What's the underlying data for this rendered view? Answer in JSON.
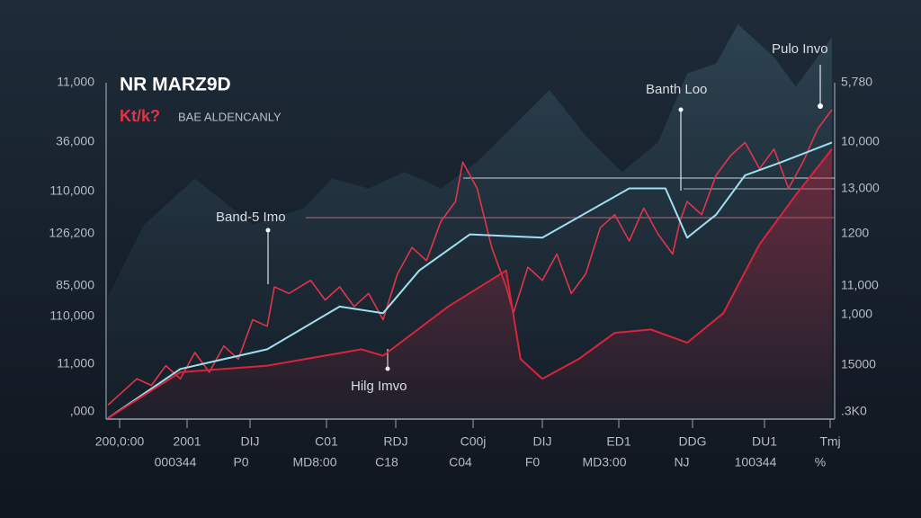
{
  "chart_data": {
    "type": "line",
    "title": "NR MARZ9D",
    "subtitle_mark": "Kt/k?",
    "subtitle": "BAE ALDENCANLY",
    "annotations": [
      "Pulo Invo",
      "Banth Loo",
      "Band-5 Imo",
      "Hilg Imvo"
    ],
    "left_axis_labels": [
      "11,000",
      "36,000",
      "110,000",
      "126,200",
      "85,000",
      "110,000",
      "11,000",
      ",000"
    ],
    "right_axis_labels": [
      "5,780",
      "10,000",
      "13,000",
      "1200",
      "11,000",
      "1,000",
      "15000",
      ".3K0"
    ],
    "bottom_labels": [
      "200,0:00",
      "2001",
      "DIJ",
      "C01",
      "RDJ",
      "C00j",
      "DIJ",
      "ED1",
      "DDG",
      "DU1",
      "Tmj"
    ],
    "bottom_sublabels": [
      "000344",
      "P0",
      "MD8:00",
      "C18",
      "C04",
      "F0",
      "MD3:00",
      "NJ",
      "100344",
      "%"
    ],
    "xlim": [
      0,
      100
    ],
    "ylim": [
      0,
      120
    ],
    "background": {
      "color": "#2b3d4c",
      "x": [
        0,
        5,
        12,
        20,
        27,
        31,
        36,
        41,
        46,
        51,
        56,
        61,
        66,
        71,
        76,
        80,
        84,
        87,
        92,
        95,
        100
      ],
      "values": [
        37,
        59,
        73,
        59,
        64,
        73,
        70,
        75,
        70,
        78,
        89,
        100,
        86,
        75,
        84,
        105,
        108,
        120,
        110,
        101,
        116
      ]
    },
    "series": [
      {
        "color": "#e0354a",
        "style": "jagged",
        "x": [
          0,
          2,
          4,
          6,
          8,
          10,
          12,
          14,
          16,
          18,
          20,
          22,
          23,
          25,
          28,
          30,
          32,
          34,
          36,
          38,
          40,
          42,
          44,
          46,
          48,
          49,
          51,
          53,
          55,
          56,
          58,
          60,
          62,
          64,
          66,
          68,
          70,
          72,
          74,
          76,
          78,
          79,
          80,
          82,
          84,
          86,
          88,
          90,
          92,
          94,
          96,
          98,
          100
        ],
        "values": [
          4,
          8,
          12,
          10,
          16,
          12,
          20,
          14,
          22,
          18,
          30,
          28,
          40,
          38,
          42,
          36,
          40,
          34,
          38,
          30,
          44,
          52,
          48,
          60,
          66,
          78,
          70,
          52,
          40,
          32,
          46,
          42,
          50,
          38,
          44,
          58,
          62,
          54,
          64,
          56,
          50,
          60,
          66,
          62,
          74,
          80,
          84,
          76,
          82,
          70,
          78,
          88,
          94
        ]
      },
      {
        "color": "#9fe0f0",
        "style": "smooth",
        "x": [
          0,
          10,
          22,
          32,
          38,
          43,
          50,
          60,
          72,
          77,
          80,
          84,
          88,
          93,
          100
        ],
        "values": [
          0,
          15,
          21,
          34,
          32,
          45,
          56,
          55,
          70,
          70,
          55,
          62,
          74,
          78,
          84
        ]
      },
      {
        "color": "#d9243c",
        "style": "area",
        "x": [
          0,
          10,
          22,
          35,
          38,
          47,
          55,
          57,
          60,
          65,
          70,
          75,
          80,
          85,
          90,
          95,
          100
        ],
        "values": [
          0,
          14,
          16,
          21,
          19,
          34,
          45,
          18,
          12,
          18,
          26,
          27,
          23,
          32,
          53,
          68,
          82
        ]
      }
    ]
  }
}
